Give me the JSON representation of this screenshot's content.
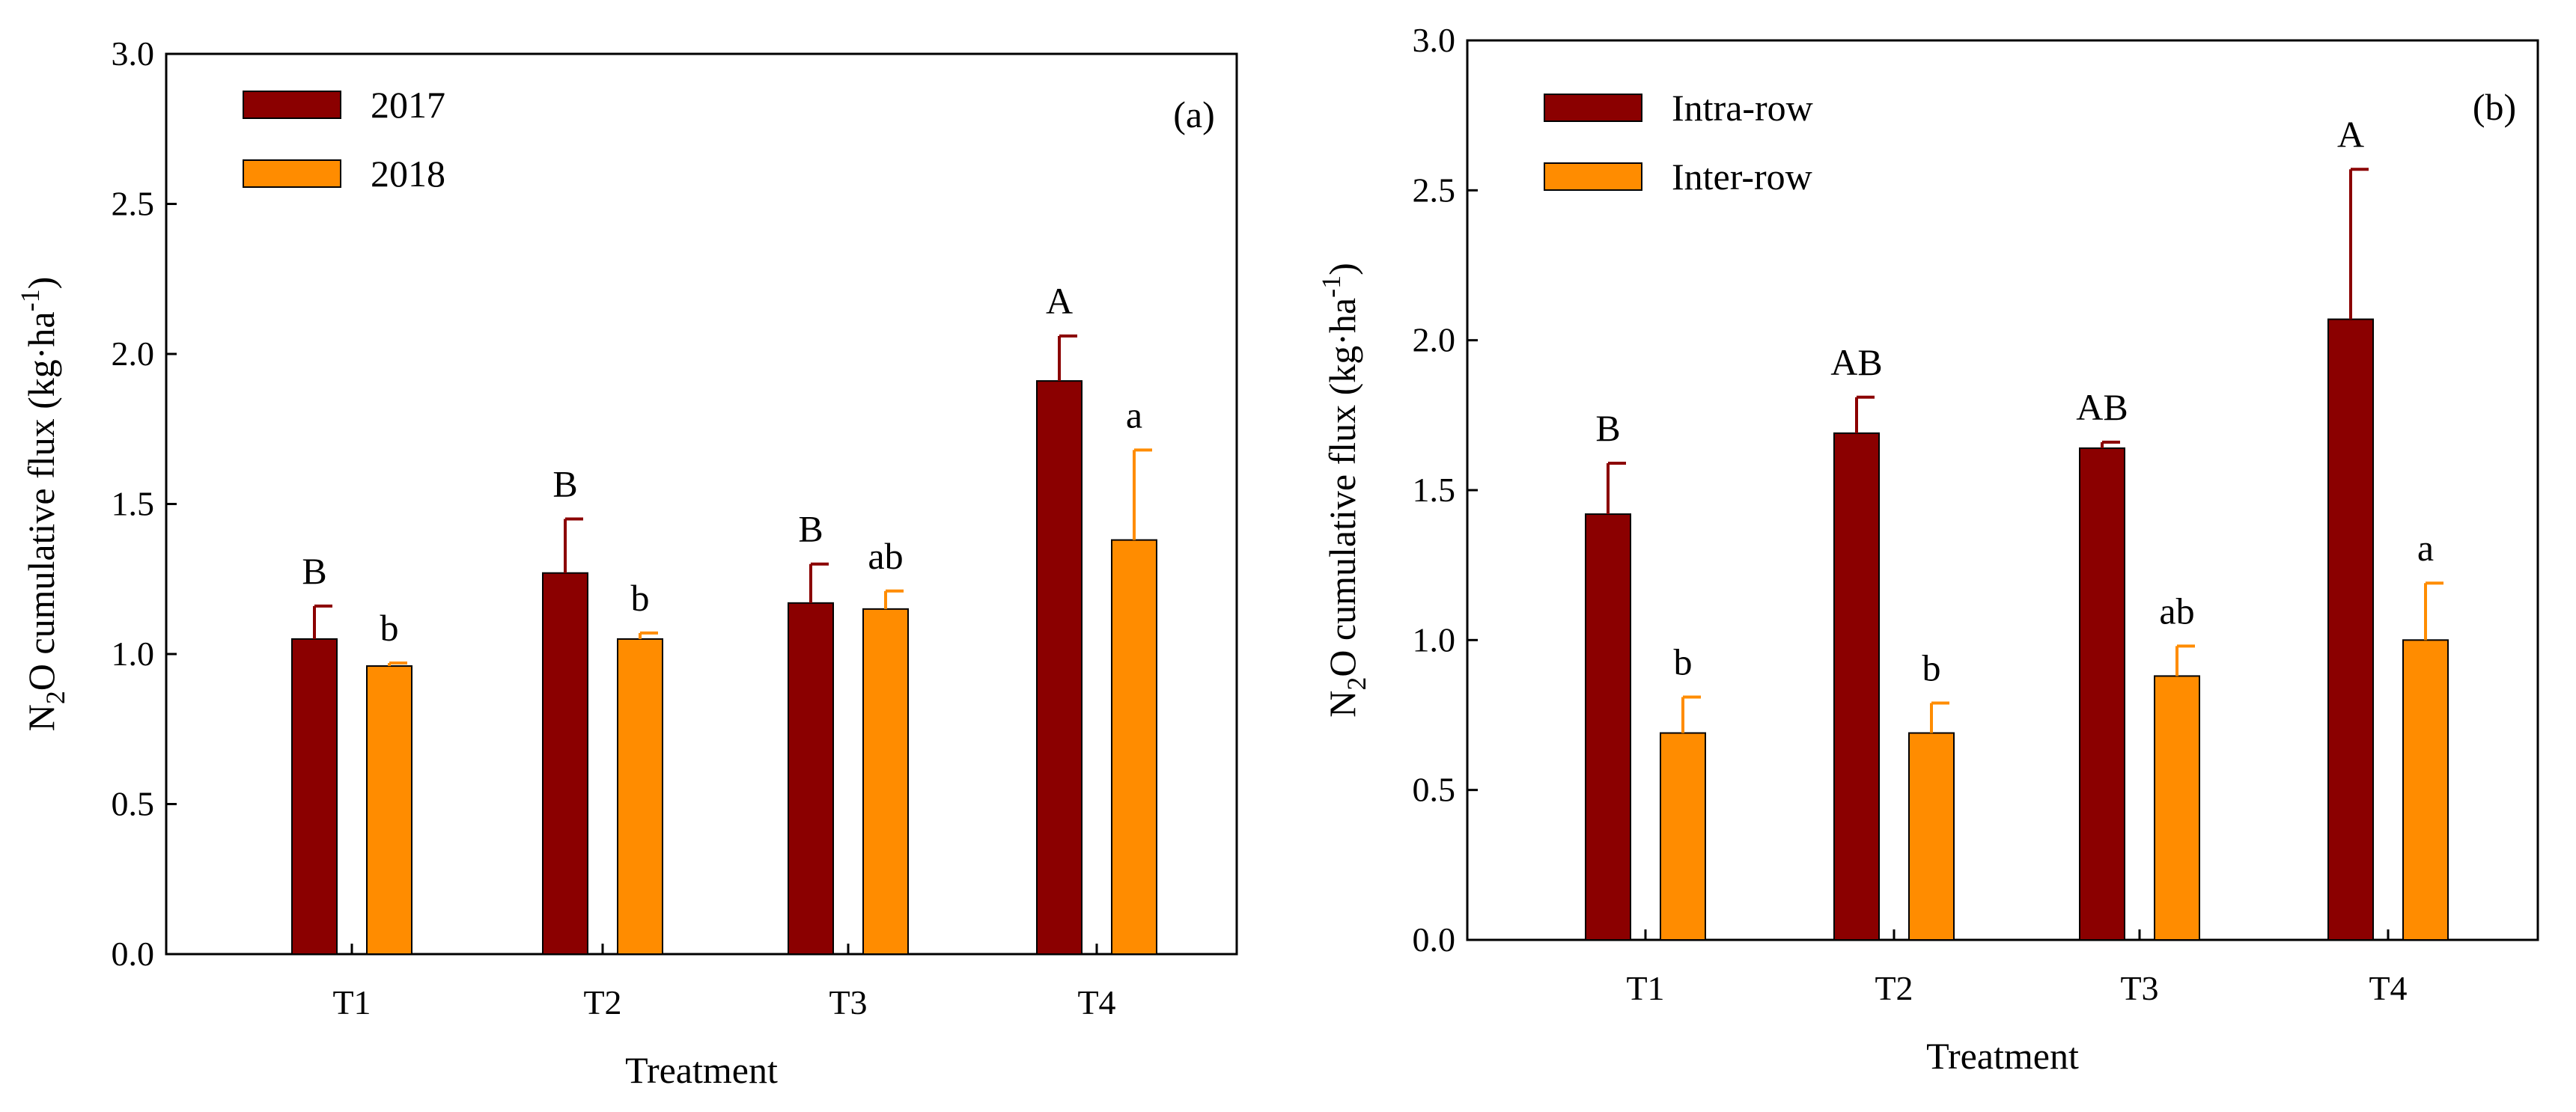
{
  "chart_data": [
    {
      "type": "bar",
      "panel_label": "(a)",
      "xlabel": "Treatment",
      "ylabel": "N2O cumulative flux (kg·ha-1)",
      "ylabel_parts": {
        "pre": "N",
        "sub": "2",
        "mid": "O cumulative flux (kg·ha",
        "sup": "-1",
        "post": ")"
      },
      "ylim": [
        0,
        3.0
      ],
      "ytick_values": [
        0,
        0.5,
        1.0,
        1.5,
        2.0,
        2.5,
        3.0
      ],
      "ytick_labels": [
        "0.0",
        "0.5",
        "1.0",
        "1.5",
        "2.0",
        "2.5",
        "3.0"
      ],
      "categories": [
        "T1",
        "T2",
        "T3",
        "T4"
      ],
      "legend_position": "top-left",
      "series": [
        {
          "name": "2017",
          "color": "#8b0000",
          "values": [
            1.05,
            1.27,
            1.17,
            1.91
          ],
          "errors": [
            0.11,
            0.18,
            0.13,
            0.15
          ],
          "significance": [
            "B",
            "B",
            "B",
            "A"
          ]
        },
        {
          "name": "2018",
          "color": "#ff8c00",
          "values": [
            0.96,
            1.05,
            1.15,
            1.38
          ],
          "errors": [
            0.01,
            0.02,
            0.06,
            0.3
          ],
          "significance": [
            "b",
            "b",
            "ab",
            "a"
          ]
        }
      ]
    },
    {
      "type": "bar",
      "panel_label": "(b)",
      "xlabel": "Treatment",
      "ylabel": "N2O cumulative flux (kg·ha-1)",
      "ylabel_parts": {
        "pre": "N",
        "sub": "2",
        "mid": "O cumulative flux (kg·ha",
        "sup": "-1",
        "post": ")"
      },
      "ylim": [
        0,
        3.0
      ],
      "ytick_values": [
        0,
        0.5,
        1.0,
        1.5,
        2.0,
        2.5,
        3.0
      ],
      "ytick_labels": [
        "0.0",
        "0.5",
        "1.0",
        "1.5",
        "2.0",
        "2.5",
        "3.0"
      ],
      "categories": [
        "T1",
        "T2",
        "T3",
        "T4"
      ],
      "legend_position": "top-left",
      "series": [
        {
          "name": "Intra-row",
          "color": "#8b0000",
          "values": [
            1.42,
            1.69,
            1.64,
            2.07
          ],
          "errors": [
            0.17,
            0.12,
            0.02,
            0.5
          ],
          "significance": [
            "B",
            "AB",
            "AB",
            "A"
          ]
        },
        {
          "name": "Inter-row",
          "color": "#ff8c00",
          "values": [
            0.69,
            0.69,
            0.88,
            1.0
          ],
          "errors": [
            0.12,
            0.1,
            0.1,
            0.19
          ],
          "significance": [
            "b",
            "b",
            "ab",
            "a"
          ]
        }
      ]
    }
  ]
}
